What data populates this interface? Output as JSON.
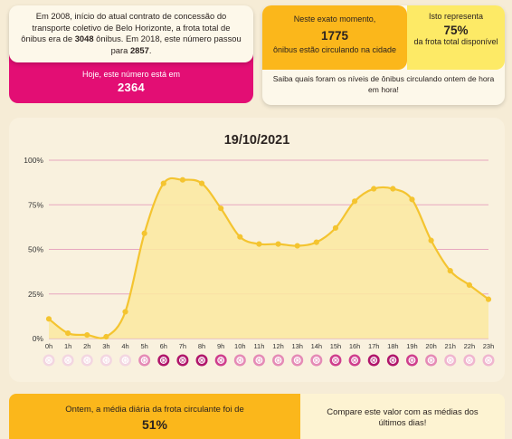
{
  "intro": {
    "text_1": "Em 2008, início do atual contrato de concessão do transporte coletivo de Belo Horizonte, a frota total de ônibus era de ",
    "fleet_2008": "3048",
    "text_2": " ônibus. Em 2018, este número passou para ",
    "fleet_2018": "2857",
    "text_3": "."
  },
  "today": {
    "label": "Hoje, este número está em",
    "value": "2364"
  },
  "now": {
    "label": "Neste exato momento,",
    "count": "1775",
    "sub": "ônibus estão circulando na cidade",
    "share_label": "Isto representa",
    "share_value": "75%",
    "share_sub": "da frota total disponível",
    "note": "Saiba quais foram os níveis de ônibus circulando ontem de hora em hora!"
  },
  "colors": {
    "magenta": "#e30e74",
    "orange": "#fbb71b",
    "yellow": "#fdea66",
    "line": "#f4c430",
    "fill": "#fbe9a0",
    "grid": "#e7a7bf"
  },
  "chart_data": {
    "type": "area",
    "title": "19/10/2021",
    "x": [
      "0h",
      "1h",
      "2h",
      "3h",
      "4h",
      "5h",
      "6h",
      "7h",
      "8h",
      "9h",
      "10h",
      "11h",
      "12h",
      "13h",
      "14h",
      "15h",
      "16h",
      "17h",
      "18h",
      "19h",
      "20h",
      "21h",
      "22h",
      "23h"
    ],
    "values": [
      11,
      3,
      2,
      1,
      15,
      59,
      87,
      89,
      87,
      73,
      57,
      53,
      53,
      52,
      54,
      62,
      77,
      84,
      84,
      78,
      55,
      38,
      30,
      22
    ],
    "yticks": [
      "0%",
      "25%",
      "50%",
      "75%",
      "100%"
    ],
    "ylim": [
      0,
      100
    ],
    "grid": true,
    "hour_marker_icons": "bus-wheel-icon"
  },
  "summary": {
    "label": "Ontem, a média diária da frota circulante foi de",
    "value": "51%",
    "compare": "Compare este valor com as médias dos últimos dias!"
  }
}
